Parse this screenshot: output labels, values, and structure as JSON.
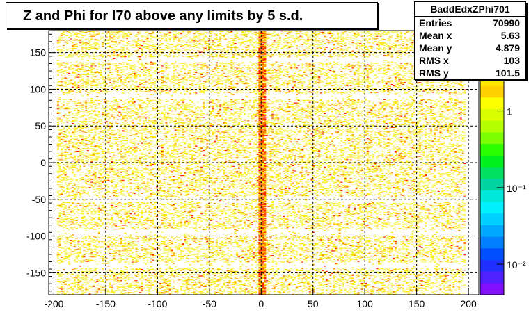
{
  "chart_data": {
    "type": "heatmap",
    "title": "Z and Phi for I70 above any limits by 5 s.d.",
    "xlabel": "",
    "ylabel": "",
    "xlim": [
      -205,
      210
    ],
    "ylim": [
      -180,
      180
    ],
    "x_ticks": [
      -200,
      -150,
      -100,
      -50,
      0,
      50,
      100,
      150,
      200
    ],
    "y_ticks": [
      -150,
      -100,
      -50,
      0,
      50,
      100,
      150
    ],
    "grid": true,
    "log_z": true,
    "palette_labels": [
      "1",
      "10⁻¹",
      "10⁻²"
    ],
    "palette_label_values": [
      1,
      0.1,
      0.01
    ],
    "zlim": [
      0.004,
      3
    ],
    "data_x_range": [
      -197,
      197
    ],
    "data_y_range": [
      -180,
      180
    ],
    "hot_column_x": 0,
    "stats": {
      "name": "BaddEdxZPhi701",
      "entries": "70990",
      "mean_x": "5.63",
      "mean_y": "4.879",
      "rms_x": "103",
      "rms_y": "101.5"
    },
    "stats_labels": {
      "entries": "Entries",
      "mean_x": "Mean x",
      "mean_y": "Mean y",
      "rms_x": "RMS x",
      "rms_y": "RMS y"
    }
  },
  "colors": {
    "low": "#f5f56e",
    "mid": "#ffe600",
    "high": "#ff8c00",
    "peak": "#ff2200",
    "grid": "#000000"
  }
}
